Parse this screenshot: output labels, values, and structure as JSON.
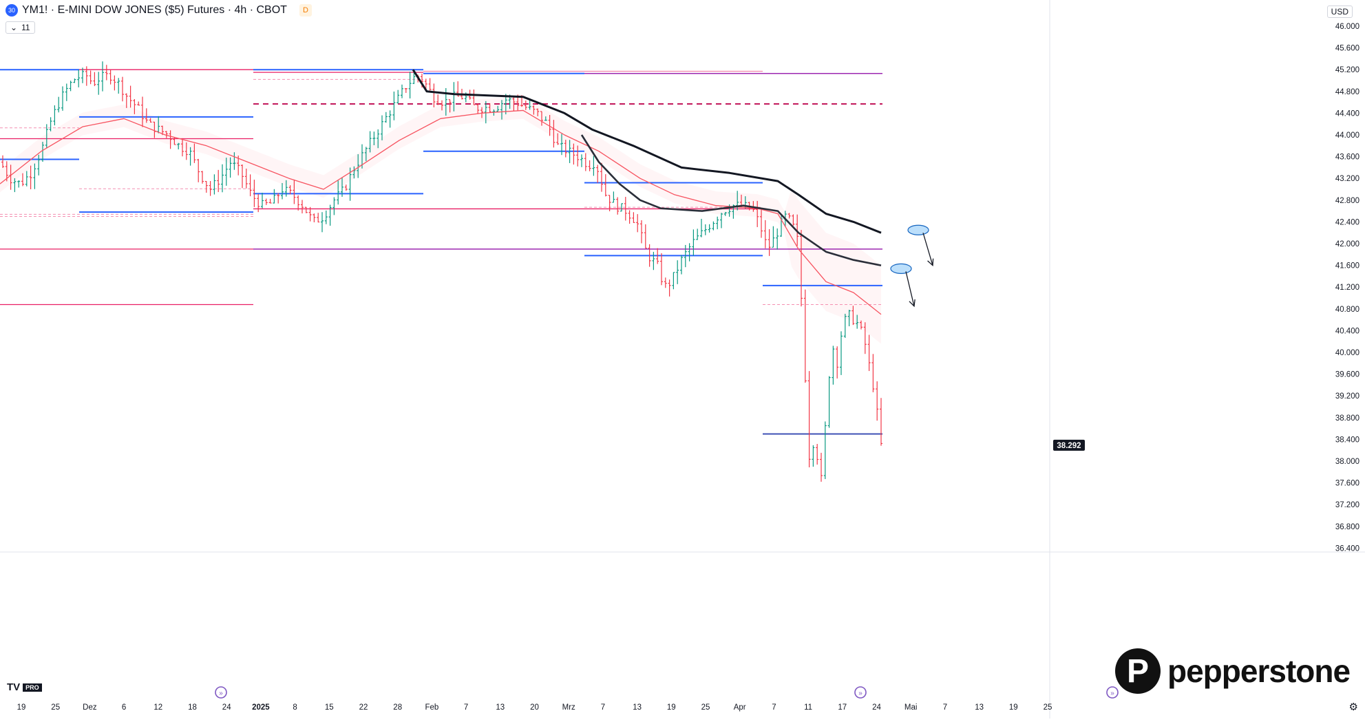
{
  "header": {
    "symbol_badge": "30",
    "title": "YM1! · E-MINI DOW JONES ($5) Futures · 4h · CBOT",
    "delayed_badge": "D",
    "indicator_count": "11",
    "currency": "USD"
  },
  "branding": {
    "tradingview": "TV",
    "tradingview_pro": "PRO",
    "broker_mark": "P",
    "broker": "pepperstone"
  },
  "colors": {
    "up": "#089981",
    "down": "#f23645",
    "blue_level": "#2962ff",
    "magenta_level": "#e91e63",
    "purple_level": "#9c27b0",
    "ema": "#131722",
    "ma_red": "#f7525f",
    "price_badge": "#131722"
  },
  "chart_data": {
    "type": "candlestick",
    "y_ticks": [
      "46.000",
      "45.600",
      "45.200",
      "44.800",
      "44.400",
      "44.000",
      "43.600",
      "43.200",
      "42.800",
      "42.400",
      "42.000",
      "41.600",
      "41.200",
      "40.800",
      "40.400",
      "40.000",
      "39.600",
      "39.200",
      "38.800",
      "38.400",
      "38.000",
      "37.600",
      "37.200",
      "36.800",
      "36.400"
    ],
    "ylim": [
      36200,
      46300
    ],
    "x_ticks": [
      {
        "label": "19",
        "bold": false
      },
      {
        "label": "25",
        "bold": false
      },
      {
        "label": "Dez",
        "bold": false
      },
      {
        "label": "6",
        "bold": false
      },
      {
        "label": "12",
        "bold": false
      },
      {
        "label": "18",
        "bold": false
      },
      {
        "label": "24",
        "bold": false
      },
      {
        "label": "2025",
        "bold": true
      },
      {
        "label": "8",
        "bold": false
      },
      {
        "label": "15",
        "bold": false
      },
      {
        "label": "22",
        "bold": false
      },
      {
        "label": "28",
        "bold": false
      },
      {
        "label": "Feb",
        "bold": false
      },
      {
        "label": "7",
        "bold": false
      },
      {
        "label": "13",
        "bold": false
      },
      {
        "label": "20",
        "bold": false
      },
      {
        "label": "Mrz",
        "bold": false
      },
      {
        "label": "7",
        "bold": false
      },
      {
        "label": "13",
        "bold": false
      },
      {
        "label": "19",
        "bold": false
      },
      {
        "label": "25",
        "bold": false
      },
      {
        "label": "Apr",
        "bold": false
      },
      {
        "label": "7",
        "bold": false
      },
      {
        "label": "11",
        "bold": false
      },
      {
        "label": "17",
        "bold": false
      },
      {
        "label": "24",
        "bold": false
      },
      {
        "label": "Mai",
        "bold": false
      },
      {
        "label": "7",
        "bold": false
      },
      {
        "label": "13",
        "bold": false
      },
      {
        "label": "19",
        "bold": false
      },
      {
        "label": "25",
        "bold": false
      }
    ],
    "last_price": "38.292",
    "last_price_value": 38292,
    "close_path": [
      [
        0,
        43500
      ],
      [
        15,
        43200
      ],
      [
        30,
        43100
      ],
      [
        45,
        43300
      ],
      [
        60,
        43700
      ],
      [
        75,
        44300
      ],
      [
        90,
        44700
      ],
      [
        100,
        44900
      ],
      [
        110,
        45050
      ],
      [
        125,
        45100
      ],
      [
        135,
        44950
      ],
      [
        145,
        45050
      ],
      [
        160,
        45100
      ],
      [
        172,
        44950
      ],
      [
        185,
        44700
      ],
      [
        200,
        44500
      ],
      [
        215,
        44200
      ],
      [
        230,
        44100
      ],
      [
        245,
        44000
      ],
      [
        260,
        43800
      ],
      [
        275,
        43700
      ],
      [
        290,
        43300
      ],
      [
        305,
        43000
      ],
      [
        320,
        43200
      ],
      [
        335,
        43500
      ],
      [
        350,
        43300
      ],
      [
        365,
        42900
      ],
      [
        380,
        42700
      ],
      [
        395,
        42750
      ],
      [
        410,
        43000
      ],
      [
        425,
        42900
      ],
      [
        440,
        42700
      ],
      [
        455,
        42400
      ],
      [
        470,
        42500
      ],
      [
        485,
        42800
      ],
      [
        500,
        43000
      ],
      [
        515,
        43400
      ],
      [
        530,
        43700
      ],
      [
        545,
        44000
      ],
      [
        560,
        44300
      ],
      [
        575,
        44600
      ],
      [
        590,
        44900
      ],
      [
        605,
        45100
      ],
      [
        615,
        45000
      ],
      [
        630,
        44700
      ],
      [
        645,
        44600
      ],
      [
        660,
        44700
      ],
      [
        675,
        44700
      ],
      [
        690,
        44500
      ],
      [
        705,
        44500
      ],
      [
        720,
        44500
      ],
      [
        735,
        44650
      ],
      [
        750,
        44600
      ],
      [
        765,
        44500
      ],
      [
        780,
        44400
      ],
      [
        795,
        44200
      ],
      [
        810,
        43800
      ],
      [
        825,
        43700
      ],
      [
        840,
        43600
      ],
      [
        855,
        43450
      ],
      [
        865,
        43500
      ],
      [
        880,
        42900
      ],
      [
        895,
        42700
      ],
      [
        910,
        42600
      ],
      [
        925,
        42400
      ],
      [
        940,
        41800
      ],
      [
        955,
        41600
      ],
      [
        965,
        41200
      ],
      [
        975,
        41300
      ],
      [
        990,
        41700
      ],
      [
        1005,
        42000
      ],
      [
        1020,
        42200
      ],
      [
        1035,
        42400
      ],
      [
        1050,
        42600
      ],
      [
        1065,
        42700
      ],
      [
        1080,
        42700
      ],
      [
        1095,
        42600
      ],
      [
        1105,
        42300
      ],
      [
        1115,
        41900
      ],
      [
        1125,
        42100
      ],
      [
        1140,
        42500
      ],
      [
        1150,
        42400
      ],
      [
        1160,
        42000
      ],
      [
        1168,
        40000
      ],
      [
        1176,
        38000
      ],
      [
        1184,
        38500
      ],
      [
        1192,
        37500
      ],
      [
        1200,
        38800
      ],
      [
        1208,
        40200
      ],
      [
        1216,
        39800
      ],
      [
        1224,
        40500
      ],
      [
        1232,
        40700
      ],
      [
        1240,
        40600
      ],
      [
        1248,
        40500
      ],
      [
        1256,
        40200
      ],
      [
        1262,
        39800
      ],
      [
        1270,
        39300
      ],
      [
        1276,
        38700
      ],
      [
        1280,
        38292
      ]
    ],
    "ema_black": [
      [
        600,
        45200
      ],
      [
        620,
        44800
      ],
      [
        660,
        44750
      ],
      [
        760,
        44700
      ],
      [
        820,
        44400
      ],
      [
        860,
        44100
      ],
      [
        920,
        43800
      ],
      [
        990,
        43400
      ],
      [
        1060,
        43300
      ],
      [
        1130,
        43150
      ],
      [
        1160,
        42900
      ],
      [
        1200,
        42550
      ],
      [
        1240,
        42400
      ],
      [
        1280,
        42200
      ]
    ],
    "ema_black_2": [
      [
        845,
        44000
      ],
      [
        870,
        43500
      ],
      [
        900,
        43100
      ],
      [
        930,
        42800
      ],
      [
        960,
        42650
      ],
      [
        1020,
        42600
      ],
      [
        1080,
        42700
      ],
      [
        1130,
        42600
      ],
      [
        1160,
        42200
      ],
      [
        1200,
        41850
      ],
      [
        1240,
        41700
      ],
      [
        1280,
        41600
      ]
    ],
    "ma_red": [
      [
        0,
        43100
      ],
      [
        60,
        43700
      ],
      [
        120,
        44150
      ],
      [
        180,
        44300
      ],
      [
        240,
        44000
      ],
      [
        300,
        43800
      ],
      [
        360,
        43500
      ],
      [
        420,
        43200
      ],
      [
        470,
        43000
      ],
      [
        520,
        43400
      ],
      [
        580,
        43900
      ],
      [
        640,
        44300
      ],
      [
        700,
        44400
      ],
      [
        760,
        44450
      ],
      [
        820,
        44000
      ],
      [
        870,
        43700
      ],
      [
        930,
        43200
      ],
      [
        980,
        42900
      ],
      [
        1040,
        42700
      ],
      [
        1100,
        42650
      ],
      [
        1130,
        42550
      ],
      [
        1160,
        41900
      ],
      [
        1200,
        41300
      ],
      [
        1240,
        41100
      ],
      [
        1280,
        40700
      ]
    ],
    "levels": [
      {
        "y": 45200,
        "x0": 0,
        "x1": 115,
        "color": "#2962ff",
        "w": 2,
        "dash": false
      },
      {
        "y": 45200,
        "x0": 115,
        "x1": 368,
        "color": "#e91e63",
        "w": 1.3,
        "dash": false
      },
      {
        "y": 45200,
        "x0": 368,
        "x1": 615,
        "color": "#2962ff",
        "w": 2,
        "dash": false
      },
      {
        "y": 45150,
        "x0": 368,
        "x1": 615,
        "color": "#e91e63",
        "w": 1.3,
        "dash": false
      },
      {
        "y": 45130,
        "x0": 615,
        "x1": 849,
        "color": "#2962ff",
        "w": 2,
        "dash": false
      },
      {
        "y": 45170,
        "x0": 615,
        "x1": 1108,
        "color": "#f48fb1",
        "w": 1.3,
        "dash": false
      },
      {
        "y": 45130,
        "x0": 849,
        "x1": 1282,
        "color": "#9c27b0",
        "w": 1.5,
        "dash": false
      },
      {
        "y": 45020,
        "x0": 368,
        "x1": 615,
        "color": "#f48fb1",
        "w": 1,
        "dash": true
      },
      {
        "y": 44570,
        "x0": 368,
        "x1": 1282,
        "color": "#c2185b",
        "w": 2,
        "dash": true
      },
      {
        "y": 44330,
        "x0": 115,
        "x1": 368,
        "color": "#2962ff",
        "w": 2,
        "dash": false
      },
      {
        "y": 44130,
        "x0": 0,
        "x1": 115,
        "color": "#f48fb1",
        "w": 1,
        "dash": true
      },
      {
        "y": 43930,
        "x0": 0,
        "x1": 368,
        "color": "#e91e63",
        "w": 1.3,
        "dash": false
      },
      {
        "y": 43700,
        "x0": 615,
        "x1": 849,
        "color": "#2962ff",
        "w": 2,
        "dash": false
      },
      {
        "y": 43550,
        "x0": 0,
        "x1": 115,
        "color": "#2962ff",
        "w": 2,
        "dash": false
      },
      {
        "y": 43120,
        "x0": 849,
        "x1": 1108,
        "color": "#2962ff",
        "w": 2,
        "dash": false
      },
      {
        "y": 43010,
        "x0": 115,
        "x1": 368,
        "color": "#f48fb1",
        "w": 1,
        "dash": true
      },
      {
        "y": 42920,
        "x0": 368,
        "x1": 615,
        "color": "#2962ff",
        "w": 2,
        "dash": false
      },
      {
        "y": 42670,
        "x0": 849,
        "x1": 1108,
        "color": "#f48fb1",
        "w": 1,
        "dash": true
      },
      {
        "y": 42640,
        "x0": 368,
        "x1": 1108,
        "color": "#e91e63",
        "w": 1.3,
        "dash": false
      },
      {
        "y": 42580,
        "x0": 115,
        "x1": 368,
        "color": "#2962ff",
        "w": 2,
        "dash": false
      },
      {
        "y": 42540,
        "x0": 0,
        "x1": 368,
        "color": "#f48fb1",
        "w": 1,
        "dash": true
      },
      {
        "y": 42500,
        "x0": 0,
        "x1": 368,
        "color": "#f48fb1",
        "w": 1,
        "dash": true
      },
      {
        "y": 41900,
        "x0": 0,
        "x1": 368,
        "color": "#e91e63",
        "w": 1.3,
        "dash": false
      },
      {
        "y": 41900,
        "x0": 368,
        "x1": 1282,
        "color": "#9c27b0",
        "w": 1.5,
        "dash": false
      },
      {
        "y": 41780,
        "x0": 849,
        "x1": 1108,
        "color": "#2962ff",
        "w": 2,
        "dash": false
      },
      {
        "y": 41230,
        "x0": 1108,
        "x1": 1282,
        "color": "#2962ff",
        "w": 2,
        "dash": false
      },
      {
        "y": 40880,
        "x0": 0,
        "x1": 368,
        "color": "#e91e63",
        "w": 1.3,
        "dash": false
      },
      {
        "y": 40880,
        "x0": 1108,
        "x1": 1282,
        "color": "#f48fb1",
        "w": 1,
        "dash": true
      },
      {
        "y": 38500,
        "x0": 1108,
        "x1": 1282,
        "color": "#3f51b5",
        "w": 2,
        "dash": false
      }
    ],
    "annotations": [
      {
        "x": 1334,
        "y": 42250,
        "x2": 1355,
        "y2": 41600
      },
      {
        "x": 1309,
        "y": 41540,
        "x2": 1328,
        "y2": 40850
      }
    ]
  }
}
